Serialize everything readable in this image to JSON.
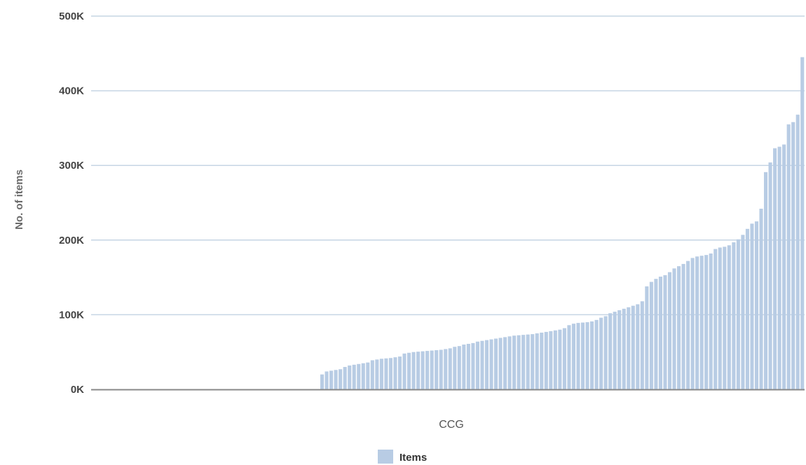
{
  "chart_data": {
    "type": "bar",
    "xlabel": "CCG",
    "ylabel": "No. of items",
    "ylim": [
      0,
      500000
    ],
    "yticks": [
      {
        "value": 0,
        "label": "0K"
      },
      {
        "value": 100000,
        "label": "100K"
      },
      {
        "value": 200000,
        "label": "200K"
      },
      {
        "value": 300000,
        "label": "300K"
      },
      {
        "value": 400000,
        "label": "400K"
      },
      {
        "value": 500000,
        "label": "500K"
      }
    ],
    "grid": true,
    "legend": {
      "position": "bottom-center"
    },
    "series": [
      {
        "name": "Items",
        "color": "#b8cce4",
        "highlight_color": "#000080",
        "highlight_index": 47,
        "values": [
          0,
          0,
          0,
          0,
          0,
          0,
          0,
          0,
          0,
          0,
          0,
          0,
          0,
          0,
          0,
          0,
          0,
          0,
          0,
          0,
          0,
          0,
          0,
          0,
          0,
          0,
          0,
          0,
          0,
          0,
          0,
          0,
          0,
          0,
          0,
          0,
          0,
          0,
          0,
          0,
          0,
          0,
          0,
          0,
          0,
          0,
          0,
          0,
          0,
          0,
          20000,
          24000,
          25000,
          26000,
          27000,
          30000,
          32000,
          33000,
          34000,
          35000,
          36000,
          39000,
          40000,
          41000,
          41500,
          42000,
          43000,
          44000,
          48000,
          49000,
          50000,
          50500,
          51000,
          51500,
          52000,
          52500,
          53000,
          54000,
          55000,
          57000,
          58000,
          60000,
          61000,
          62000,
          64000,
          65000,
          66000,
          67000,
          68000,
          69000,
          70000,
          71000,
          72000,
          72500,
          73000,
          73500,
          74000,
          75000,
          76000,
          77000,
          78000,
          79000,
          80000,
          82000,
          86000,
          88000,
          89000,
          89500,
          90000,
          91000,
          93000,
          96000,
          98000,
          102000,
          104000,
          106000,
          108000,
          110000,
          112000,
          114000,
          118000,
          138000,
          144000,
          148000,
          151000,
          153000,
          157000,
          162000,
          165000,
          168000,
          172000,
          176000,
          178000,
          179000,
          180000,
          182000,
          188000,
          190000,
          191000,
          193000,
          197000,
          201000,
          207000,
          215000,
          222000,
          225000,
          242000,
          291000,
          304000,
          323000,
          325000,
          328000,
          355000,
          358000,
          368000,
          445000
        ]
      }
    ]
  }
}
